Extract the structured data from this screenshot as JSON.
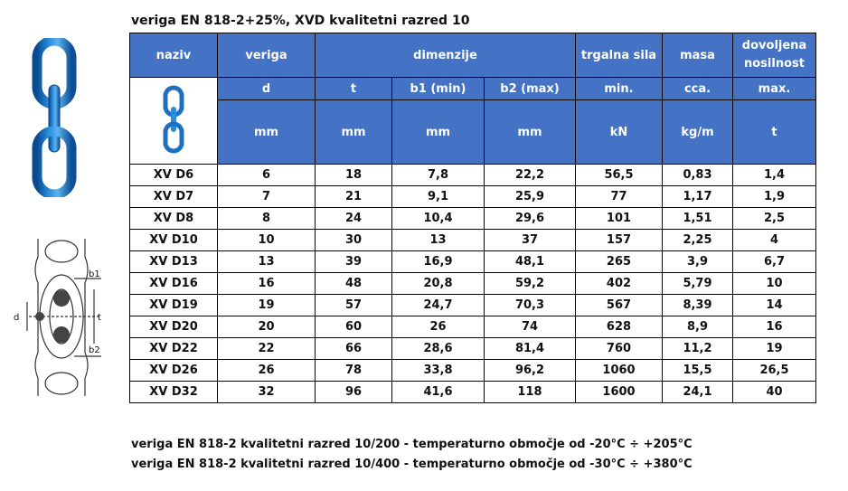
{
  "title": "veriga EN 818-2+25%, XVD kvalitetni razred 10",
  "table": {
    "headers": {
      "naziv": "naziv",
      "veriga": "veriga",
      "dimenzije": "dimenzije",
      "trgalna_sila": "trgalna sila",
      "masa": "masa",
      "dovoljena_nosilnost": "dovoljena nosilnost"
    },
    "symbols": [
      "d",
      "t",
      "b1 (min)",
      "b2 (max)",
      "min.",
      "cca.",
      "max."
    ],
    "units": [
      "mm",
      "mm",
      "mm",
      "mm",
      "kN",
      "kg/m",
      "t"
    ],
    "rows": [
      [
        "XV D6",
        "6",
        "18",
        "7,8",
        "22,2",
        "56,5",
        "0,83",
        "1,4"
      ],
      [
        "XV D7",
        "7",
        "21",
        "9,1",
        "25,9",
        "77",
        "1,17",
        "1,9"
      ],
      [
        "XV D8",
        "8",
        "24",
        "10,4",
        "29,6",
        "101",
        "1,51",
        "2,5"
      ],
      [
        "XV D10",
        "10",
        "30",
        "13",
        "37",
        "157",
        "2,25",
        "4"
      ],
      [
        "XV D13",
        "13",
        "39",
        "16,9",
        "48,1",
        "265",
        "3,9",
        "6,7"
      ],
      [
        "XV D16",
        "16",
        "48",
        "20,8",
        "59,2",
        "402",
        "5,79",
        "10"
      ],
      [
        "XV D19",
        "19",
        "57",
        "24,7",
        "70,3",
        "567",
        "8,39",
        "14"
      ],
      [
        "XV D20",
        "20",
        "60",
        "26",
        "74",
        "628",
        "8,9",
        "16"
      ],
      [
        "XV D22",
        "22",
        "66",
        "28,6",
        "81,4",
        "760",
        "11,2",
        "19"
      ],
      [
        "XV D26",
        "26",
        "78",
        "33,8",
        "96,2",
        "1060",
        "15,5",
        "26,5"
      ],
      [
        "XV D32",
        "32",
        "96",
        "41,6",
        "118",
        "1600",
        "24,1",
        "40"
      ]
    ]
  },
  "diagram_labels": {
    "b1": "b1",
    "d": "d",
    "t": "t",
    "b2": "b2"
  },
  "footer": {
    "line1": "veriga EN 818-2 kvalitetni razred 10/200 - temperaturno območje od -20°C ÷ +205°C",
    "line2": "veriga EN 818-2 kvalitetni razred 10/400 - temperaturno območje od -30°C ÷ +380°C"
  },
  "colors": {
    "header_blue": "#4472c4",
    "chain_blue": "#1f6fc0"
  }
}
